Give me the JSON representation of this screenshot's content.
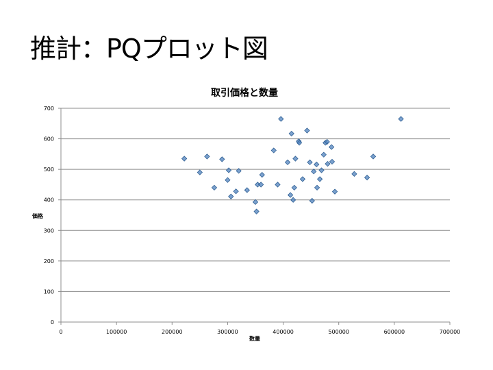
{
  "slide": {
    "title": "推計：PQプロット図"
  },
  "chart_data": {
    "type": "scatter",
    "title": "取引価格と数量",
    "xlabel": "数量",
    "ylabel": "価格",
    "xlim": [
      0,
      700000
    ],
    "ylim": [
      0,
      700
    ],
    "xticks": [
      0,
      100000,
      200000,
      300000,
      400000,
      500000,
      600000,
      700000
    ],
    "yticks": [
      0,
      100,
      200,
      300,
      400,
      500,
      600,
      700
    ],
    "grid": "horizontal major gridlines",
    "legend": "none",
    "marker": "diamond",
    "marker_color": "#4F81BD",
    "series": [
      {
        "points": [
          [
            222000,
            535
          ],
          [
            250000,
            490
          ],
          [
            263000,
            542
          ],
          [
            276000,
            440
          ],
          [
            290000,
            533
          ],
          [
            300000,
            465
          ],
          [
            302000,
            497
          ],
          [
            306000,
            411
          ],
          [
            315000,
            428
          ],
          [
            320000,
            495
          ],
          [
            335000,
            432
          ],
          [
            350000,
            393
          ],
          [
            352000,
            362
          ],
          [
            354000,
            450
          ],
          [
            360000,
            450
          ],
          [
            362000,
            482
          ],
          [
            383000,
            562
          ],
          [
            390000,
            450
          ],
          [
            396000,
            665
          ],
          [
            408000,
            523
          ],
          [
            413000,
            416
          ],
          [
            415000,
            617
          ],
          [
            418000,
            400
          ],
          [
            420000,
            440
          ],
          [
            422000,
            535
          ],
          [
            428000,
            592
          ],
          [
            429000,
            587
          ],
          [
            435000,
            468
          ],
          [
            443000,
            627
          ],
          [
            448000,
            523
          ],
          [
            452000,
            397
          ],
          [
            455000,
            493
          ],
          [
            460000,
            516
          ],
          [
            461000,
            440
          ],
          [
            466000,
            468
          ],
          [
            469000,
            497
          ],
          [
            473000,
            548
          ],
          [
            476000,
            587
          ],
          [
            479000,
            590
          ],
          [
            480000,
            518
          ],
          [
            487000,
            573
          ],
          [
            488000,
            525
          ],
          [
            493000,
            427
          ],
          [
            528000,
            485
          ],
          [
            551000,
            473
          ],
          [
            562000,
            542
          ],
          [
            612000,
            665
          ]
        ]
      }
    ]
  }
}
